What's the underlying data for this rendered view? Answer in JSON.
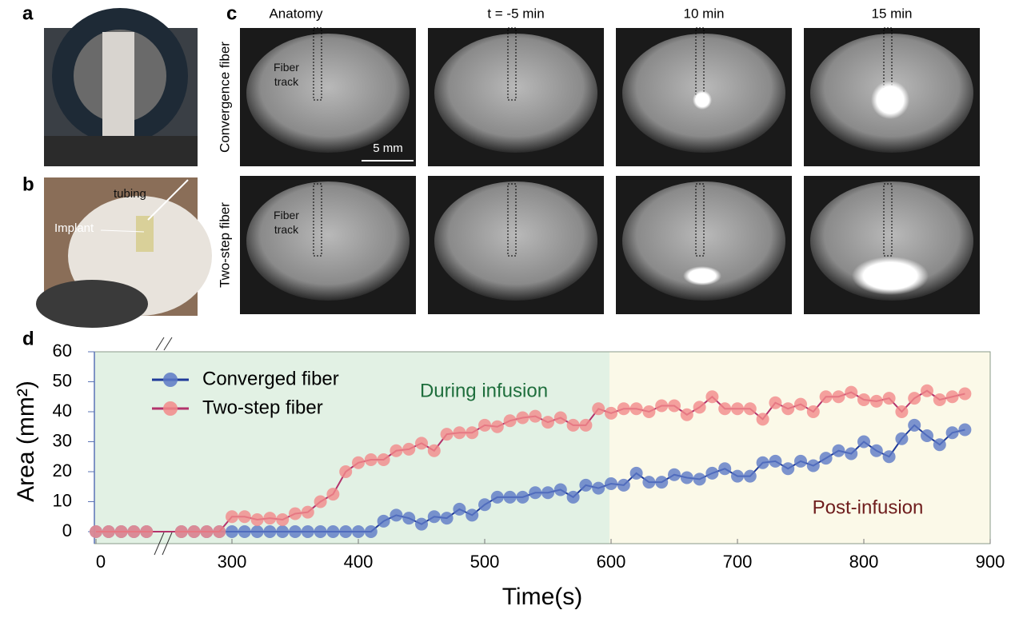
{
  "panel_labels": [
    "a",
    "b",
    "c",
    "d"
  ],
  "photo_b_labels": [
    "tubing",
    "Implant"
  ],
  "mri": {
    "columns": [
      "Anatomy",
      "t = -5 min",
      "10 min",
      "15 min"
    ],
    "rows": [
      "Convergence fiber",
      "Two-step fiber"
    ],
    "annotations": [
      "Fiber track",
      "Fiber track"
    ],
    "scale_bar": "5 mm"
  },
  "chart_data": {
    "type": "line",
    "x_label": "Time(s)",
    "y_label": "Area (mm²)",
    "xlim": [
      0,
      900
    ],
    "xticks": [
      0,
      300,
      400,
      500,
      600,
      700,
      800,
      900
    ],
    "xbreak": [
      50,
      250
    ],
    "ylim": [
      -4,
      60
    ],
    "yticks": [
      0,
      10,
      20,
      30,
      40,
      50,
      60
    ],
    "legend": "upper left",
    "shaded_regions": [
      {
        "label": "During infusion",
        "range": [
          0,
          600
        ],
        "color": "#e2f1e4",
        "text_color": "#1e6e3c"
      },
      {
        "label": "Post-infusion",
        "range": [
          600,
          900
        ],
        "color": "#fbf9e8",
        "text_color": "#6e1c1c"
      }
    ],
    "series": [
      {
        "name": "Converged fiber",
        "color": "#1f3a99",
        "marker_color": "#5c79c6",
        "x": [
          0,
          10,
          20,
          30,
          40,
          260,
          270,
          280,
          290,
          300,
          310,
          320,
          330,
          340,
          350,
          360,
          370,
          380,
          390,
          400,
          410,
          420,
          430,
          440,
          450,
          460,
          470,
          480,
          490,
          500,
          510,
          520,
          530,
          540,
          550,
          560,
          570,
          580,
          590,
          600,
          610,
          620,
          630,
          640,
          650,
          660,
          670,
          680,
          690,
          700,
          710,
          720,
          730,
          740,
          750,
          760,
          770,
          780,
          790,
          800,
          810,
          820,
          830,
          840,
          850,
          860,
          870,
          880
        ],
        "values": [
          0,
          0,
          0,
          0,
          0,
          0,
          0,
          0,
          0,
          0,
          0,
          0,
          0,
          0,
          0,
          0,
          0,
          0,
          0,
          0,
          0,
          3.5,
          5.5,
          4.5,
          2.5,
          5,
          4.5,
          7.5,
          5.5,
          9,
          11.5,
          11.5,
          11.5,
          13,
          13,
          14,
          11.5,
          15.5,
          14.5,
          16,
          15.5,
          19.5,
          16.5,
          16.5,
          19,
          18,
          17.5,
          19.5,
          21,
          18.5,
          18.5,
          23,
          23.5,
          21,
          23.5,
          22,
          24.5,
          27,
          26,
          30,
          27,
          25,
          31,
          35.5,
          32,
          29,
          33,
          34
        ]
      },
      {
        "name": "Two-step fiber",
        "color": "#b3336b",
        "marker_color": "#f28a8a",
        "x": [
          0,
          10,
          20,
          30,
          40,
          260,
          270,
          280,
          290,
          300,
          310,
          320,
          330,
          340,
          350,
          360,
          370,
          380,
          390,
          400,
          410,
          420,
          430,
          440,
          450,
          460,
          470,
          480,
          490,
          500,
          510,
          520,
          530,
          540,
          550,
          560,
          570,
          580,
          590,
          600,
          610,
          620,
          630,
          640,
          650,
          660,
          670,
          680,
          690,
          700,
          710,
          720,
          730,
          740,
          750,
          760,
          770,
          780,
          790,
          800,
          810,
          820,
          830,
          840,
          850,
          860,
          870,
          880
        ],
        "values": [
          0,
          0,
          0,
          0,
          0,
          0,
          0,
          0,
          0,
          5,
          5,
          4,
          4.5,
          4,
          6,
          6.5,
          10,
          12.5,
          20,
          23,
          24,
          24,
          27,
          27.5,
          29.5,
          27,
          32.5,
          33,
          33,
          35.5,
          35,
          37,
          38,
          38.5,
          36.5,
          38,
          35.5,
          35.5,
          41,
          39.5,
          41,
          41,
          40,
          42,
          42,
          39,
          41.5,
          45,
          41,
          41,
          41,
          37.5,
          43,
          41,
          42.5,
          40,
          45,
          45,
          46.5,
          44,
          43.5,
          44.5,
          40,
          44.5,
          47,
          44,
          45,
          46
        ]
      }
    ]
  }
}
